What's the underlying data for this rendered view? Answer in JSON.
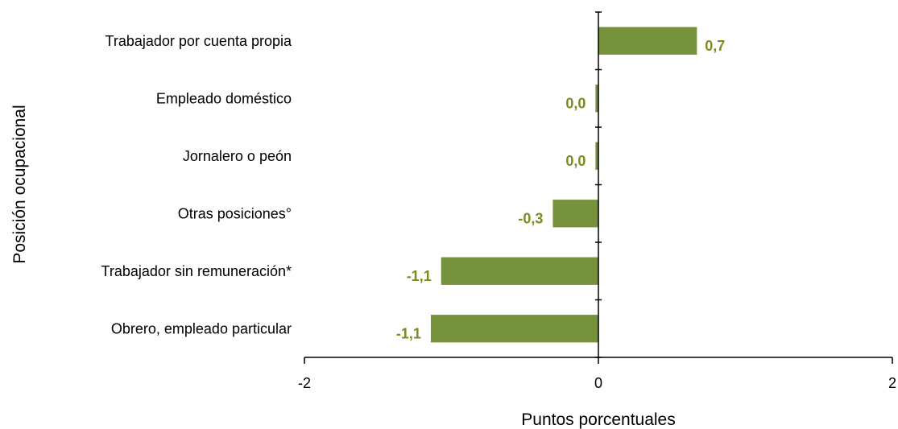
{
  "chart_data": {
    "type": "bar",
    "orientation": "horizontal",
    "categories": [
      "Trabajador por cuenta propia",
      "Empleado doméstico",
      "Jornalero o peón",
      "Otras posiciones°",
      "Trabajador sin remuneración*",
      "Obrero, empleado particular"
    ],
    "values": [
      0.67,
      -0.02,
      -0.02,
      -0.31,
      -1.07,
      -1.14
    ],
    "data_labels": [
      "0,7",
      "0,0",
      "0,0",
      "-0,3",
      "-1,1",
      "-1,1"
    ],
    "xlabel": "Puntos porcentuales",
    "ylabel": "Posición ocupacional",
    "xlim": [
      -2,
      2
    ],
    "x_ticks": [
      "-2",
      "0",
      "2"
    ],
    "grid": false,
    "colors": {
      "bar": "#76923C",
      "label": "#7F8A1E",
      "axis": "#000000"
    }
  }
}
